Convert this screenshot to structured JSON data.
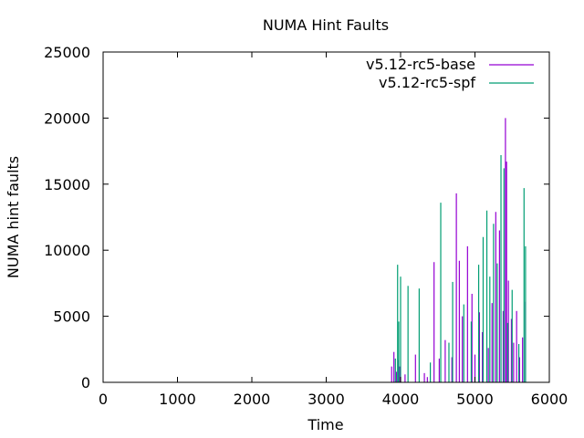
{
  "chart_data": {
    "type": "bar",
    "title": "NUMA Hint Faults",
    "xlabel": "Time",
    "ylabel": "NUMA hint faults",
    "xlim": [
      0,
      6000
    ],
    "ylim": [
      0,
      25000
    ],
    "xticks": [
      0,
      1000,
      2000,
      3000,
      4000,
      5000,
      6000
    ],
    "yticks": [
      0,
      5000,
      10000,
      15000,
      20000,
      25000
    ],
    "grid": false,
    "legend_position": "top-right",
    "series": [
      {
        "name": "v5.12-rc5-base",
        "color": "#9400d3",
        "points": [
          [
            3880,
            1200
          ],
          [
            3910,
            2300
          ],
          [
            3945,
            800
          ],
          [
            3965,
            1700
          ],
          [
            3990,
            1200
          ],
          [
            4060,
            600
          ],
          [
            4200,
            2100
          ],
          [
            4320,
            700
          ],
          [
            4360,
            400
          ],
          [
            4450,
            9100
          ],
          [
            4520,
            1800
          ],
          [
            4600,
            3200
          ],
          [
            4690,
            1900
          ],
          [
            4750,
            14300
          ],
          [
            4790,
            9200
          ],
          [
            4830,
            5000
          ],
          [
            4900,
            10300
          ],
          [
            4960,
            6700
          ],
          [
            5000,
            2100
          ],
          [
            5060,
            5300
          ],
          [
            5100,
            3800
          ],
          [
            5180,
            2600
          ],
          [
            5230,
            6000
          ],
          [
            5280,
            12900
          ],
          [
            5330,
            11500
          ],
          [
            5380,
            5400
          ],
          [
            5410,
            20000
          ],
          [
            5425,
            16700
          ],
          [
            5450,
            7700
          ],
          [
            5490,
            4800
          ],
          [
            5520,
            3000
          ],
          [
            5560,
            5400
          ],
          [
            5600,
            1900
          ],
          [
            5640,
            3400
          ],
          [
            5680,
            6100
          ]
        ]
      },
      {
        "name": "v5.12-rc5-spf",
        "color": "#009e73",
        "points": [
          [
            3930,
            1800
          ],
          [
            3960,
            8900
          ],
          [
            3975,
            4600
          ],
          [
            4000,
            8000
          ],
          [
            4100,
            7300
          ],
          [
            4250,
            7100
          ],
          [
            4400,
            1500
          ],
          [
            4540,
            13600
          ],
          [
            4650,
            3000
          ],
          [
            4700,
            7600
          ],
          [
            4850,
            5900
          ],
          [
            4950,
            4600
          ],
          [
            5050,
            8900
          ],
          [
            5110,
            11000
          ],
          [
            5160,
            13000
          ],
          [
            5200,
            8000
          ],
          [
            5250,
            12000
          ],
          [
            5300,
            9000
          ],
          [
            5350,
            17200
          ],
          [
            5390,
            16200
          ],
          [
            5440,
            4500
          ],
          [
            5500,
            7000
          ],
          [
            5590,
            2900
          ],
          [
            5660,
            14700
          ],
          [
            5680,
            10300
          ]
        ]
      }
    ]
  }
}
